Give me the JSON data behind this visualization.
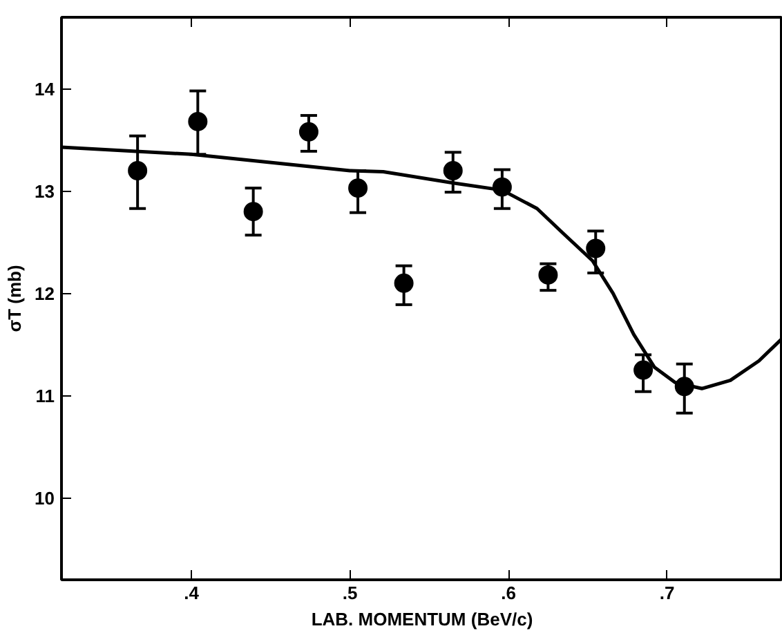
{
  "chart_data": {
    "type": "scatter",
    "xlabel": "LAB. MOMENTUM (BeV/c)",
    "ylabel": "σT (mb)",
    "xlim": [
      0.318,
      0.773
    ],
    "ylim": [
      9.2,
      14.7
    ],
    "xticks": [
      {
        "value": 0.4,
        "label": ".4"
      },
      {
        "value": 0.5,
        "label": ".5"
      },
      {
        "value": 0.6,
        "label": ".6"
      },
      {
        "value": 0.7,
        "label": ".7"
      }
    ],
    "yticks": [
      10,
      11,
      12,
      13,
      14
    ],
    "grid": false,
    "marker": "circle",
    "series": [
      {
        "color": "#000000",
        "x": [
          0.366,
          0.404,
          0.439,
          0.474,
          0.505,
          0.534,
          0.565,
          0.596,
          0.625,
          0.655,
          0.685,
          0.711
        ],
        "values": [
          13.2,
          13.68,
          12.8,
          13.58,
          13.03,
          12.1,
          13.2,
          13.04,
          12.18,
          12.44,
          11.25,
          11.09
        ],
        "errors": [
          [
            12.83,
            13.54
          ],
          [
            13.36,
            13.98
          ],
          [
            12.57,
            13.03
          ],
          [
            13.39,
            13.74
          ],
          [
            12.79,
            13.2
          ],
          [
            11.89,
            12.27
          ],
          [
            12.99,
            13.38
          ],
          [
            12.83,
            13.21
          ],
          [
            12.03,
            12.29
          ],
          [
            12.2,
            12.61
          ],
          [
            11.04,
            11.4
          ],
          [
            10.83,
            11.31
          ]
        ]
      },
      {
        "type": "line",
        "color": "#000000",
        "marker": "none",
        "line_style": "solid",
        "x": [
          0.318,
          0.4,
          0.5,
          0.521,
          0.565,
          0.596,
          0.618,
          0.635,
          0.653,
          0.666,
          0.679,
          0.692,
          0.705,
          0.722,
          0.74,
          0.758,
          0.772
        ],
        "values": [
          13.43,
          13.36,
          13.2,
          13.19,
          13.08,
          13.01,
          12.83,
          12.58,
          12.32,
          12.0,
          11.6,
          11.28,
          11.13,
          11.07,
          11.15,
          11.34,
          11.55
        ]
      }
    ]
  }
}
